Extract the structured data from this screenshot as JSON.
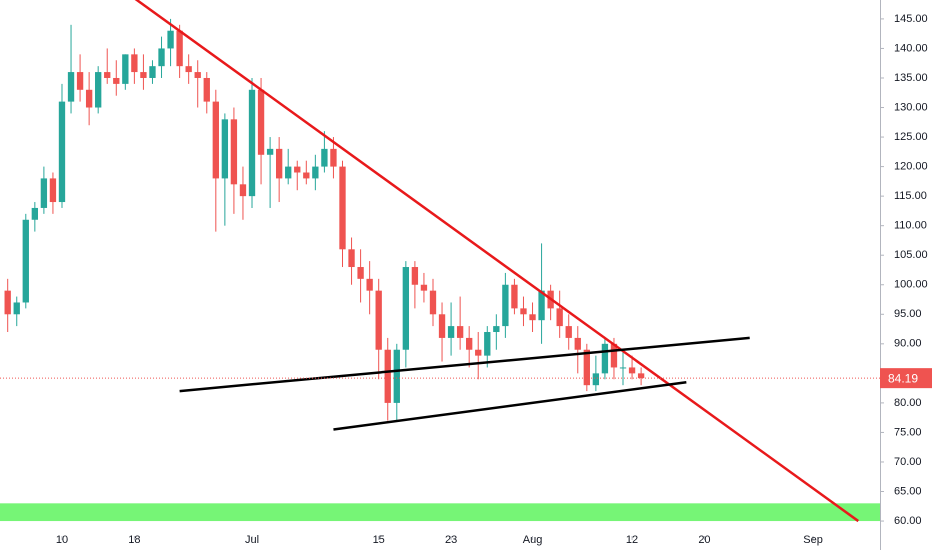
{
  "chart_data": {
    "type": "candlestick",
    "x": [
      -6,
      -5,
      -4,
      -3,
      -2,
      -1,
      0,
      1,
      2,
      3,
      4,
      5,
      6,
      7,
      8,
      9,
      10,
      11,
      12,
      13,
      14,
      15,
      16,
      17,
      18,
      19,
      20,
      21,
      22,
      23,
      24,
      25,
      26,
      27,
      28,
      29,
      30,
      31,
      32,
      33,
      34,
      35,
      36,
      37,
      38,
      39,
      40,
      41,
      42,
      43,
      44,
      45,
      46,
      47,
      48,
      49,
      50,
      51,
      52,
      53,
      54,
      55,
      56,
      57,
      58,
      59,
      60,
      61,
      62,
      63,
      64
    ],
    "open": [
      99,
      95,
      97,
      111,
      113,
      118,
      114,
      131,
      136,
      133,
      130,
      136,
      135,
      134,
      139,
      136,
      135,
      137,
      140,
      143,
      137,
      136,
      135,
      131,
      118,
      128,
      117,
      115,
      133,
      122,
      123,
      118,
      120,
      119,
      118,
      120,
      123,
      120,
      106,
      103,
      101,
      99,
      89,
      80,
      89,
      103,
      100,
      99,
      95,
      91,
      93,
      91,
      89,
      88,
      92,
      93,
      100,
      96,
      95,
      94,
      99,
      96,
      93,
      91,
      89,
      83,
      85,
      90,
      86,
      86,
      85
    ],
    "high": [
      101,
      98,
      112,
      114,
      120,
      119,
      134,
      144,
      139,
      136,
      137,
      140,
      138,
      139,
      140,
      139,
      138,
      142,
      145,
      144,
      139,
      138,
      136,
      133,
      129,
      130,
      120,
      135,
      135,
      125,
      125,
      123,
      121,
      121,
      122,
      126,
      125,
      121,
      108,
      106,
      104,
      101,
      91,
      90,
      104,
      104,
      102,
      101,
      97,
      97,
      98,
      93,
      92,
      93,
      95,
      102,
      101,
      98,
      97,
      107,
      100,
      99,
      95,
      93,
      90,
      88,
      91,
      91,
      89,
      88,
      86
    ],
    "low": [
      92,
      93,
      96,
      109,
      112,
      112,
      113,
      129,
      131,
      127,
      129,
      134,
      132,
      133,
      134,
      133,
      134,
      135,
      137,
      135,
      134,
      130,
      129,
      109,
      110,
      112,
      111,
      113,
      117,
      113,
      114,
      117,
      116,
      117,
      116,
      119,
      118,
      103,
      100,
      97,
      95,
      84,
      77,
      77,
      86,
      96,
      97,
      93,
      87,
      88,
      89,
      86,
      84,
      86,
      89,
      91,
      95,
      93,
      92,
      90,
      94,
      91,
      89,
      85,
      82,
      82,
      84,
      84,
      83,
      84,
      83
    ],
    "close": [
      95,
      97,
      111,
      113,
      118,
      114,
      131,
      136,
      133,
      130,
      136,
      135,
      134,
      139,
      136,
      135,
      137,
      140,
      143,
      137,
      136,
      135,
      131,
      118,
      128,
      117,
      115,
      133,
      122,
      123,
      118,
      120,
      119,
      118,
      120,
      123,
      120,
      106,
      103,
      101,
      99,
      89,
      80,
      89,
      103,
      100,
      99,
      95,
      91,
      93,
      91,
      89,
      88,
      92,
      93,
      100,
      96,
      95,
      94,
      99,
      96,
      93,
      91,
      89,
      83,
      85,
      90,
      86,
      86,
      85,
      84.19
    ],
    "last_price": 84.19,
    "trendlines": [
      {
        "color": "#e8191b",
        "x": [
          8,
          88
        ],
        "y": [
          148.5,
          60
        ]
      },
      {
        "color": "#000000",
        "x": [
          13,
          76
        ],
        "y": [
          82,
          91
        ]
      },
      {
        "color": "#000000",
        "x": [
          30,
          69
        ],
        "y": [
          75.5,
          83.5
        ]
      }
    ],
    "zone": {
      "color": "#76f576",
      "y": [
        60,
        63
      ]
    },
    "up_color": "#26a69a",
    "down_color": "#ef5350",
    "xlim": [
      -6.85,
      90.4
    ],
    "xticks": [
      {
        "value": 0,
        "label": "10"
      },
      {
        "value": 8,
        "label": "18"
      },
      {
        "value": 21,
        "label": "Jul"
      },
      {
        "value": 35,
        "label": "15"
      },
      {
        "value": 43,
        "label": "23"
      },
      {
        "value": 52,
        "label": "Aug"
      },
      {
        "value": 63,
        "label": "12"
      },
      {
        "value": 71,
        "label": "20"
      },
      {
        "value": 83,
        "label": "Sep"
      }
    ],
    "ylim": [
      55.1,
      148.2
    ],
    "yticks": [
      {
        "value": 60,
        "label": "60.00"
      },
      {
        "value": 65,
        "label": "65.00"
      },
      {
        "value": 70,
        "label": "70.00"
      },
      {
        "value": 75,
        "label": "75.00"
      },
      {
        "value": 80,
        "label": "80.00"
      },
      {
        "value": 85,
        "label": "85.00"
      },
      {
        "value": 90,
        "label": "90.00"
      },
      {
        "value": 95,
        "label": "95.00"
      },
      {
        "value": 100,
        "label": "100.00"
      },
      {
        "value": 105,
        "label": "105.00"
      },
      {
        "value": 110,
        "label": "110.00"
      },
      {
        "value": 115,
        "label": "115.00"
      },
      {
        "value": 120,
        "label": "120.00"
      },
      {
        "value": 125,
        "label": "125.00"
      },
      {
        "value": 130,
        "label": "130.00"
      },
      {
        "value": 135,
        "label": "135.00"
      },
      {
        "value": 140,
        "label": "140.00"
      },
      {
        "value": 145,
        "label": "145.00"
      }
    ]
  }
}
